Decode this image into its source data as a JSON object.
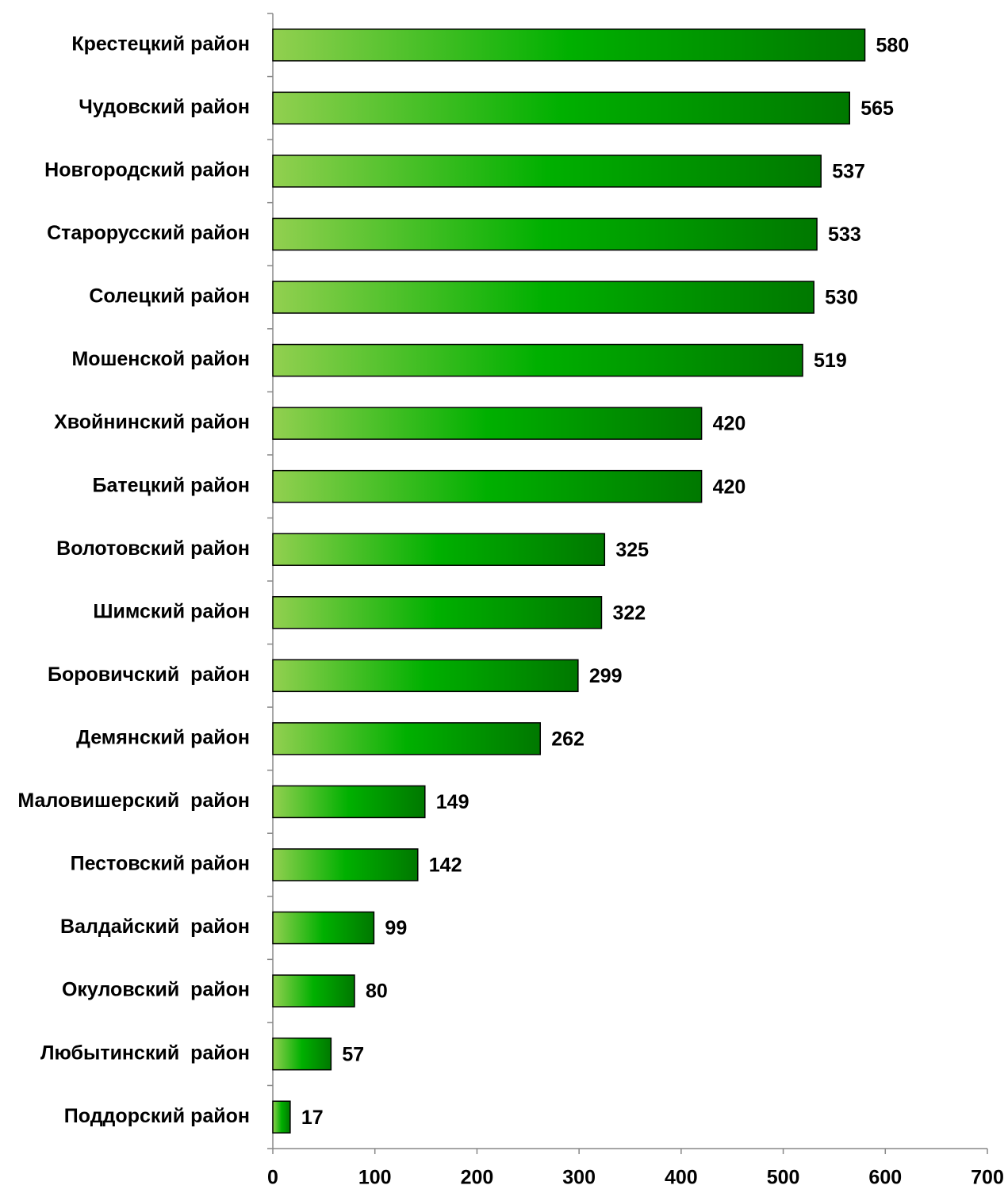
{
  "chart_data": {
    "type": "bar",
    "orientation": "horizontal",
    "categories": [
      "Крестецкий район",
      "Чудовский район",
      "Новгородский район",
      "Старорусский район",
      "Солецкий район",
      "Мошенской район",
      "Хвойнинский район",
      "Батецкий район",
      "Волотовский район",
      "Шимский район",
      "Боровичский  район",
      "Демянский район",
      "Маловишерский  район",
      "Пестовский район",
      "Валдайский  район",
      "Окуловский  район",
      "Любытинский  район",
      "Поддорский район"
    ],
    "values": [
      580,
      565,
      537,
      533,
      530,
      519,
      420,
      420,
      325,
      322,
      299,
      262,
      149,
      142,
      99,
      80,
      57,
      17
    ],
    "color": "#00b000",
    "xlim": [
      0,
      700
    ],
    "xticks": [
      0,
      100,
      200,
      300,
      400,
      500,
      600,
      700
    ],
    "grid": false
  }
}
